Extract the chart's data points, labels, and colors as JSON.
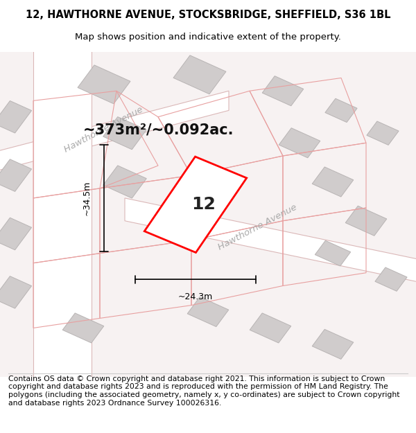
{
  "title_line1": "12, HAWTHORNE AVENUE, STOCKSBRIDGE, SHEFFIELD, S36 1BL",
  "title_line2": "Map shows position and indicative extent of the property.",
  "area_text": "~373m²/~0.092ac.",
  "property_number": "12",
  "dim_height": "~34.5m",
  "dim_width": "~24.3m",
  "street_label1": "Hawthorne Avenue",
  "street_label2": "Hawthorne Avenue",
  "footer_text": "Contains OS data © Crown copyright and database right 2021. This information is subject to Crown copyright and database rights 2023 and is reproduced with the permission of HM Land Registry. The polygons (including the associated geometry, namely x, y co-ordinates) are subject to Crown copyright and database rights 2023 Ordnance Survey 100026316.",
  "bg_color": "#ffffff",
  "map_bg": "#f5f0f0",
  "road_color": "#ffffff",
  "road_border_color": "#e8c8c8",
  "building_color": "#d8d4d4",
  "building_border": "#b0a8a8",
  "highlight_color": "#ff0000",
  "highlight_fill": "#ffffff",
  "dim_line_color": "#000000",
  "title_fontsize": 10.5,
  "subtitle_fontsize": 9.5,
  "area_fontsize": 16,
  "number_fontsize": 22,
  "street_fontsize": 11,
  "footer_fontsize": 7.8
}
